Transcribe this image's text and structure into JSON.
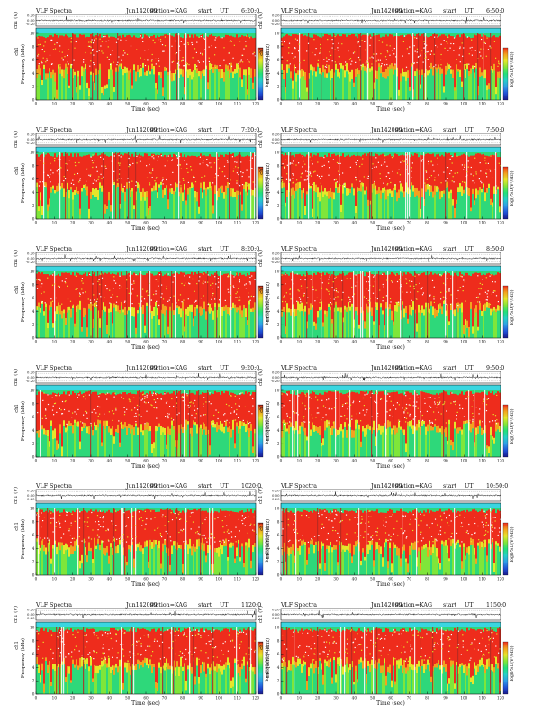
{
  "page": {
    "panel_title": "VLF Spectra",
    "station_label": "station=KAG",
    "start_label": "start",
    "ut_label": "UT",
    "wave_ylabel": "ch1 (V)",
    "spec_ylabel": "Frequency (kHz)",
    "spec_ylabel_left": "ch1",
    "xlabel": "Time (sec)",
    "colorbar_label": "log(PSD(V²/Hz))"
  },
  "colors": {
    "colormap": [
      "#1a1a8c",
      "#1f4fd6",
      "#2f9be8",
      "#25d0c8",
      "#22e07a",
      "#7fe63a",
      "#e6e62a",
      "#f3a21f",
      "#ee2c1c"
    ],
    "accent_red": "#ee2c1c",
    "band_green": "#2ed87a",
    "band_cyan": "#3ad6e0"
  },
  "chart_data": [
    {
      "type": "heatmap",
      "date": "Jun142009",
      "start_ut": "6:20:0",
      "wave_ticks": [
        "0.20",
        "0.00",
        "-0.20"
      ],
      "freq_ticks": [
        "0",
        "2",
        "4",
        "6",
        "8",
        "10"
      ],
      "time_ticks": [
        "0",
        "10",
        "20",
        "30",
        "40",
        "50",
        "60",
        "70",
        "80",
        "90",
        "100",
        "110",
        "120"
      ],
      "xlim": [
        0,
        120
      ],
      "ylim": [
        0,
        10
      ],
      "wave_ylim": [
        -0.2,
        0.2
      ],
      "dominant_band_khz": [
        4,
        10
      ]
    },
    {
      "type": "heatmap",
      "date": "Jun142009",
      "start_ut": "6:50:0",
      "wave_ticks": [
        "0.20",
        "0.00",
        "-0.20"
      ],
      "freq_ticks": [
        "0",
        "2",
        "4",
        "6",
        "8",
        "10"
      ],
      "time_ticks": [
        "0",
        "10",
        "20",
        "30",
        "40",
        "50",
        "60",
        "70",
        "80",
        "90",
        "100",
        "110",
        "120"
      ],
      "xlim": [
        0,
        120
      ],
      "ylim": [
        0,
        10
      ],
      "wave_ylim": [
        -0.2,
        0.2
      ],
      "dominant_band_khz": [
        4,
        10
      ]
    },
    {
      "type": "heatmap",
      "date": "Jun142009",
      "start_ut": "7:20:0",
      "wave_ticks": [
        "0.20",
        "0.00",
        "-0.20"
      ],
      "freq_ticks": [
        "0",
        "2",
        "4",
        "6",
        "8",
        "10"
      ],
      "time_ticks": [
        "0",
        "10",
        "20",
        "30",
        "40",
        "50",
        "60",
        "70",
        "80",
        "90",
        "100",
        "110",
        "120"
      ],
      "xlim": [
        0,
        120
      ],
      "ylim": [
        0,
        10
      ],
      "wave_ylim": [
        -0.2,
        0.2
      ],
      "dominant_band_khz": [
        4,
        10
      ]
    },
    {
      "type": "heatmap",
      "date": "Jun142009",
      "start_ut": "7:50:0",
      "wave_ticks": [
        "0.20",
        "0.00",
        "-0.20"
      ],
      "freq_ticks": [
        "0",
        "2",
        "4",
        "6",
        "8",
        "10"
      ],
      "time_ticks": [
        "0",
        "10",
        "20",
        "30",
        "40",
        "50",
        "60",
        "70",
        "80",
        "90",
        "100",
        "110",
        "120"
      ],
      "xlim": [
        0,
        120
      ],
      "ylim": [
        0,
        10
      ],
      "wave_ylim": [
        -0.2,
        0.2
      ],
      "dominant_band_khz": [
        4,
        10
      ]
    },
    {
      "type": "heatmap",
      "date": "Jun142009",
      "start_ut": "8:20:0",
      "wave_ticks": [
        "0.20",
        "0.00",
        "-0.20"
      ],
      "freq_ticks": [
        "0",
        "2",
        "4",
        "6",
        "8",
        "10"
      ],
      "time_ticks": [
        "0",
        "10",
        "20",
        "30",
        "40",
        "50",
        "60",
        "70",
        "80",
        "90",
        "100",
        "110",
        "120"
      ],
      "xlim": [
        0,
        120
      ],
      "ylim": [
        0,
        10
      ],
      "wave_ylim": [
        -0.2,
        0.2
      ],
      "dominant_band_khz": [
        4,
        10
      ]
    },
    {
      "type": "heatmap",
      "date": "Jun142009",
      "start_ut": "8:50:0",
      "wave_ticks": [
        "0.20",
        "0.00",
        "-0.20"
      ],
      "freq_ticks": [
        "0",
        "2",
        "4",
        "6",
        "8",
        "10"
      ],
      "time_ticks": [
        "0",
        "10",
        "20",
        "30",
        "40",
        "50",
        "60",
        "70",
        "80",
        "90",
        "100",
        "110",
        "120"
      ],
      "xlim": [
        0,
        120
      ],
      "ylim": [
        0,
        10
      ],
      "wave_ylim": [
        -0.2,
        0.2
      ],
      "dominant_band_khz": [
        4,
        10
      ]
    },
    {
      "type": "heatmap",
      "date": "Jun142009",
      "start_ut": "9:20:0",
      "wave_ticks": [
        "0.20",
        "0.00",
        "-0.20"
      ],
      "freq_ticks": [
        "0",
        "2",
        "4",
        "6",
        "8",
        "10"
      ],
      "time_ticks": [
        "0",
        "10",
        "20",
        "30",
        "40",
        "50",
        "60",
        "70",
        "80",
        "90",
        "100",
        "110",
        "120"
      ],
      "xlim": [
        0,
        120
      ],
      "ylim": [
        0,
        10
      ],
      "wave_ylim": [
        -0.2,
        0.2
      ],
      "dominant_band_khz": [
        4,
        10
      ]
    },
    {
      "type": "heatmap",
      "date": "Jun142009",
      "start_ut": "9:50:0",
      "wave_ticks": [
        "0.20",
        "0.00",
        "-0.20"
      ],
      "freq_ticks": [
        "0",
        "2",
        "4",
        "6",
        "8",
        "10"
      ],
      "time_ticks": [
        "0",
        "10",
        "20",
        "30",
        "40",
        "50",
        "60",
        "70",
        "80",
        "90",
        "100",
        "110",
        "120"
      ],
      "xlim": [
        0,
        120
      ],
      "ylim": [
        0,
        10
      ],
      "wave_ylim": [
        -0.2,
        0.2
      ],
      "dominant_band_khz": [
        4,
        10
      ]
    },
    {
      "type": "heatmap",
      "date": "Jun142009",
      "start_ut": "1020:0",
      "wave_ticks": [
        "0.20",
        "0.00",
        "-0.20"
      ],
      "freq_ticks": [
        "0",
        "2",
        "4",
        "6",
        "8",
        "10"
      ],
      "time_ticks": [
        "0",
        "10",
        "20",
        "30",
        "40",
        "50",
        "60",
        "70",
        "80",
        "90",
        "100",
        "110",
        "120"
      ],
      "xlim": [
        0,
        120
      ],
      "ylim": [
        0,
        10
      ],
      "wave_ylim": [
        -0.2,
        0.2
      ],
      "dominant_band_khz": [
        4,
        10
      ]
    },
    {
      "type": "heatmap",
      "date": "Jun142009",
      "start_ut": "10:50:0",
      "wave_ticks": [
        "0.20",
        "0.00",
        "-0.20"
      ],
      "freq_ticks": [
        "0",
        "2",
        "4",
        "6",
        "8",
        "10"
      ],
      "time_ticks": [
        "0",
        "10",
        "20",
        "30",
        "40",
        "50",
        "60",
        "70",
        "80",
        "90",
        "100",
        "110",
        "120"
      ],
      "xlim": [
        0,
        120
      ],
      "ylim": [
        0,
        10
      ],
      "wave_ylim": [
        -0.2,
        0.2
      ],
      "dominant_band_khz": [
        4,
        10
      ]
    },
    {
      "type": "heatmap",
      "date": "Jun142009",
      "start_ut": "1120:0",
      "wave_ticks": [
        "0.20",
        "0.00",
        "-0.20"
      ],
      "freq_ticks": [
        "0",
        "2",
        "4",
        "6",
        "8",
        "10"
      ],
      "time_ticks": [
        "0",
        "10",
        "20",
        "30",
        "40",
        "50",
        "60",
        "70",
        "80",
        "90",
        "100",
        "110",
        "120"
      ],
      "xlim": [
        0,
        120
      ],
      "ylim": [
        0,
        10
      ],
      "wave_ylim": [
        -0.2,
        0.2
      ],
      "dominant_band_khz": [
        4,
        10
      ]
    },
    {
      "type": "heatmap",
      "date": "Jun142009",
      "start_ut": "1150:0",
      "wave_ticks": [
        "0.20",
        "0.00",
        "-0.20"
      ],
      "freq_ticks": [
        "0",
        "2",
        "4",
        "6",
        "8",
        "10"
      ],
      "time_ticks": [
        "0",
        "10",
        "20",
        "30",
        "40",
        "50",
        "60",
        "70",
        "80",
        "90",
        "100",
        "110",
        "120"
      ],
      "xlim": [
        0,
        120
      ],
      "ylim": [
        0,
        10
      ],
      "wave_ylim": [
        -0.2,
        0.2
      ],
      "dominant_band_khz": [
        4,
        10
      ]
    }
  ]
}
